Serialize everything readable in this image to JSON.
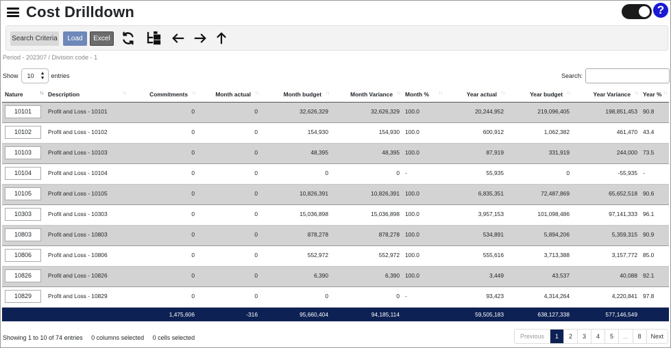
{
  "app": {
    "title": "Cost Drilldown",
    "help_label": "?"
  },
  "toolbar": {
    "search_criteria": "Search Criteria",
    "load": "Load",
    "excel": "Excel"
  },
  "breadcrumb": "Period - 202307 / Division code - 1",
  "controls": {
    "show_label": "Show",
    "page_size": "10",
    "entries_label": "entries",
    "search_label": "Search:",
    "search_value": ""
  },
  "table": {
    "columns": [
      "Nature",
      "Description",
      "Commitments",
      "Month actual",
      "Month budget",
      "Month Variance",
      "Month %",
      "Year actual",
      "Year budget",
      "Year Variance",
      "Year %"
    ],
    "rows": [
      [
        "10101",
        "Profit and Loss - 10101",
        "0",
        "0",
        "32,626,329",
        "32,626,329",
        "100.0",
        "20,244,952",
        "219,096,405",
        "198,851,453",
        "90.8"
      ],
      [
        "10102",
        "Profit and Loss - 10102",
        "0",
        "0",
        "154,930",
        "154,930",
        "100.0",
        "600,912",
        "1,062,382",
        "461,470",
        "43.4"
      ],
      [
        "10103",
        "Profit and Loss - 10103",
        "0",
        "0",
        "48,395",
        "48,395",
        "100.0",
        "87,919",
        "331,919",
        "244,000",
        "73.5"
      ],
      [
        "10104",
        "Profit and Loss - 10104",
        "0",
        "0",
        "0",
        "0",
        "-",
        "55,935",
        "0",
        "-55,935",
        "-"
      ],
      [
        "10105",
        "Profit and Loss - 10105",
        "0",
        "0",
        "10,826,391",
        "10,826,391",
        "100.0",
        "6,835,351",
        "72,487,869",
        "65,652,518",
        "90.6"
      ],
      [
        "10303",
        "Profit and Loss - 10303",
        "0",
        "0",
        "15,036,898",
        "15,036,898",
        "100.0",
        "3,957,153",
        "101,098,486",
        "97,141,333",
        "96.1"
      ],
      [
        "10803",
        "Profit and Loss - 10803",
        "0",
        "0",
        "878,278",
        "878,278",
        "100.0",
        "534,891",
        "5,894,206",
        "5,359,315",
        "90.9"
      ],
      [
        "10806",
        "Profit and Loss - 10806",
        "0",
        "0",
        "552,972",
        "552,972",
        "100.0",
        "555,616",
        "3,713,388",
        "3,157,772",
        "85.0"
      ],
      [
        "10826",
        "Profit and Loss - 10826",
        "0",
        "0",
        "6,390",
        "6,390",
        "100.0",
        "3,449",
        "43,537",
        "40,088",
        "92.1"
      ],
      [
        "10829",
        "Profit and Loss - 10829",
        "0",
        "0",
        "0",
        "0",
        "-",
        "93,423",
        "4,314,264",
        "4,220,841",
        "97.8"
      ]
    ],
    "totals": [
      "",
      "",
      "1,475,606",
      "-316",
      "95,660,404",
      "94,185,114",
      "",
      "59,505,183",
      "638,127,338",
      "577,146,549",
      ""
    ]
  },
  "footer": {
    "showing": "Showing 1 to 10 of 74 entries",
    "columns_selected": "0 columns selected",
    "cells_selected": "0 cells selected"
  },
  "pagination": {
    "previous": "Previous",
    "pages": [
      "1",
      "2",
      "3",
      "4",
      "5",
      "...",
      "8"
    ],
    "next": "Next",
    "active": "1"
  },
  "colors": {
    "header_band": "#0e2154",
    "row_alt": "#d3d3d3",
    "load": "#6d88b9",
    "help": "#1a1ad4"
  },
  "icons": [
    "menu-icon",
    "refresh-icon",
    "tree-view-icon",
    "arrow-left-icon",
    "arrow-right-icon",
    "arrow-up-icon",
    "dark-mode-toggle",
    "help-icon"
  ]
}
